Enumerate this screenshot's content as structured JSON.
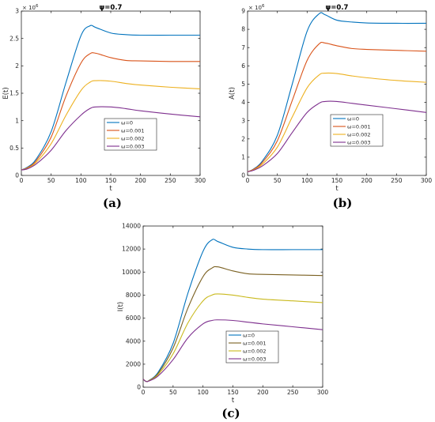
{
  "chart_data": [
    {
      "type": "line",
      "panel_label": "(a)",
      "title": "ψ=0.7",
      "xlabel": "t",
      "ylabel": "E(t)",
      "y_multiplier": "× 10^6",
      "xlim": [
        0,
        300
      ],
      "ylim": [
        0,
        3
      ],
      "xticks": [
        0,
        50,
        100,
        150,
        200,
        250,
        300
      ],
      "yticks": [
        0,
        0.5,
        1,
        1.5,
        2,
        2.5,
        3
      ],
      "ytick_labels": [
        "0",
        "0.5",
        "1",
        "1.5",
        "2",
        "2.5",
        "3"
      ],
      "legend_position": "center-right",
      "x": [
        0,
        10,
        25,
        50,
        75,
        100,
        115,
        125,
        150,
        175,
        200,
        250,
        300
      ],
      "series": [
        {
          "name": "ω=0",
          "color": "#0072BD",
          "values": [
            0.1,
            0.15,
            0.3,
            0.8,
            1.7,
            2.55,
            2.73,
            2.7,
            2.6,
            2.57,
            2.56,
            2.56,
            2.56
          ]
        },
        {
          "name": "ω=0.001",
          "color": "#D95319",
          "values": [
            0.1,
            0.14,
            0.27,
            0.7,
            1.45,
            2.05,
            2.22,
            2.23,
            2.15,
            2.1,
            2.09,
            2.08,
            2.08
          ]
        },
        {
          "name": "ω=0.002",
          "color": "#EDB120",
          "values": [
            0.1,
            0.13,
            0.24,
            0.58,
            1.1,
            1.55,
            1.7,
            1.73,
            1.72,
            1.68,
            1.65,
            1.61,
            1.58
          ]
        },
        {
          "name": "ω=0.003",
          "color": "#7E2F8E",
          "values": [
            0.1,
            0.12,
            0.21,
            0.46,
            0.82,
            1.1,
            1.22,
            1.25,
            1.25,
            1.22,
            1.18,
            1.12,
            1.07
          ]
        }
      ]
    },
    {
      "type": "line",
      "panel_label": "(b)",
      "title": "ψ=0.7",
      "xlabel": "t",
      "ylabel": "A(t)",
      "y_multiplier": "× 10^6",
      "xlim": [
        0,
        300
      ],
      "ylim": [
        0,
        9
      ],
      "xticks": [
        0,
        50,
        100,
        150,
        200,
        250,
        300
      ],
      "yticks": [
        0,
        1,
        2,
        3,
        4,
        5,
        6,
        7,
        8,
        9
      ],
      "ytick_labels": [
        "0",
        "1",
        "2",
        "3",
        "4",
        "5",
        "6",
        "7",
        "8",
        "9"
      ],
      "legend_position": "center-right",
      "x": [
        0,
        10,
        25,
        50,
        75,
        100,
        120,
        130,
        150,
        175,
        200,
        250,
        300
      ],
      "series": [
        {
          "name": "ω=0",
          "color": "#0072BD",
          "values": [
            0.2,
            0.35,
            0.8,
            2.2,
            5.0,
            7.9,
            8.85,
            8.8,
            8.5,
            8.4,
            8.35,
            8.33,
            8.33
          ]
        },
        {
          "name": "ω=0.001",
          "color": "#D95319",
          "values": [
            0.2,
            0.33,
            0.72,
            1.9,
            4.1,
            6.3,
            7.2,
            7.25,
            7.1,
            6.95,
            6.9,
            6.85,
            6.8
          ]
        },
        {
          "name": "ω=0.002",
          "color": "#EDB120",
          "values": [
            0.2,
            0.3,
            0.62,
            1.55,
            3.2,
            4.8,
            5.5,
            5.6,
            5.58,
            5.45,
            5.35,
            5.2,
            5.1
          ]
        },
        {
          "name": "ω=0.003",
          "color": "#7E2F8E",
          "values": [
            0.2,
            0.28,
            0.52,
            1.2,
            2.35,
            3.45,
            3.95,
            4.05,
            4.05,
            3.95,
            3.85,
            3.65,
            3.45
          ]
        }
      ]
    },
    {
      "type": "line",
      "panel_label": "(c)",
      "title": "",
      "xlabel": "t",
      "ylabel": "I(t)",
      "y_multiplier": "",
      "xlim": [
        0,
        300
      ],
      "ylim": [
        0,
        14000
      ],
      "xticks": [
        0,
        50,
        100,
        150,
        200,
        250,
        300
      ],
      "yticks": [
        0,
        2000,
        4000,
        6000,
        8000,
        10000,
        12000,
        14000
      ],
      "ytick_labels": [
        "0",
        "2000",
        "4000",
        "6000",
        "8000",
        "10000",
        "12000",
        "14000"
      ],
      "legend_position": "center-right",
      "x": [
        0,
        5,
        10,
        25,
        50,
        75,
        100,
        115,
        125,
        150,
        175,
        200,
        250,
        300
      ],
      "series": [
        {
          "name": "ω=0",
          "color": "#0072BD",
          "values": [
            700,
            500,
            600,
            1300,
            3800,
            8200,
            11800,
            12800,
            12650,
            12150,
            12000,
            11950,
            11950,
            11950
          ]
        },
        {
          "name": "ω=0.001",
          "color": "#7A6021",
          "values": [
            700,
            500,
            590,
            1200,
            3400,
            6900,
            9600,
            10350,
            10450,
            10100,
            9850,
            9800,
            9750,
            9700
          ]
        },
        {
          "name": "ω=0.002",
          "color": "#C9B91D",
          "values": [
            700,
            500,
            570,
            1100,
            2900,
            5600,
            7500,
            8000,
            8100,
            8000,
            7800,
            7650,
            7500,
            7350
          ]
        },
        {
          "name": "ω=0.003",
          "color": "#7E2F8E",
          "values": [
            700,
            500,
            550,
            980,
            2400,
            4300,
            5500,
            5800,
            5850,
            5800,
            5650,
            5500,
            5250,
            5000
          ]
        }
      ]
    }
  ]
}
